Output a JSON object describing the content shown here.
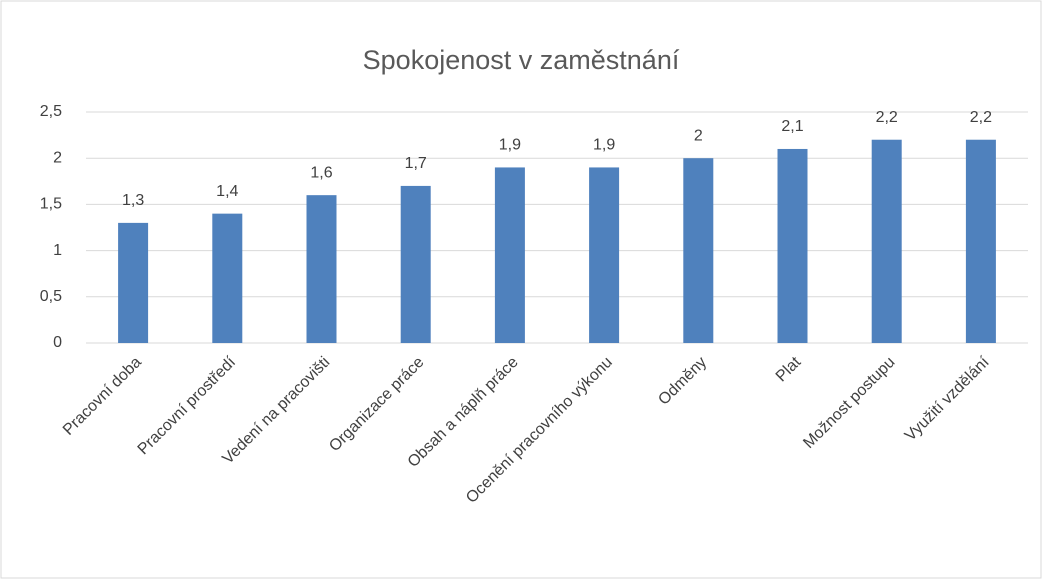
{
  "chart_data": {
    "type": "bar",
    "title": "Spokojenost v zaměstnání",
    "categories": [
      "Pracovní doba",
      "Pracovní prostředí",
      "Vedení na pracovišti",
      "Organizace práce",
      "Obsah a náplň práce",
      "Ocenění pracovního výkonu",
      "Odměny",
      "Plat",
      "Možnost postupu",
      "Využití vzdělání"
    ],
    "values": [
      1.3,
      1.4,
      1.6,
      1.7,
      1.9,
      1.9,
      2,
      2.1,
      2.2,
      2.2
    ],
    "value_labels": [
      "1,3",
      "1,4",
      "1,6",
      "1,7",
      "1,9",
      "1,9",
      "2",
      "2,1",
      "2,2",
      "2,2"
    ],
    "color": "#4f81bd",
    "ylim": [
      0,
      2.5
    ],
    "yticks": [
      0,
      {
        "value": 0.5,
        "label": "0,5"
      },
      1,
      {
        "value": 1.5,
        "label": "1,5"
      },
      2,
      {
        "value": 2.5,
        "label": "2,5"
      }
    ],
    "grid": true
  }
}
